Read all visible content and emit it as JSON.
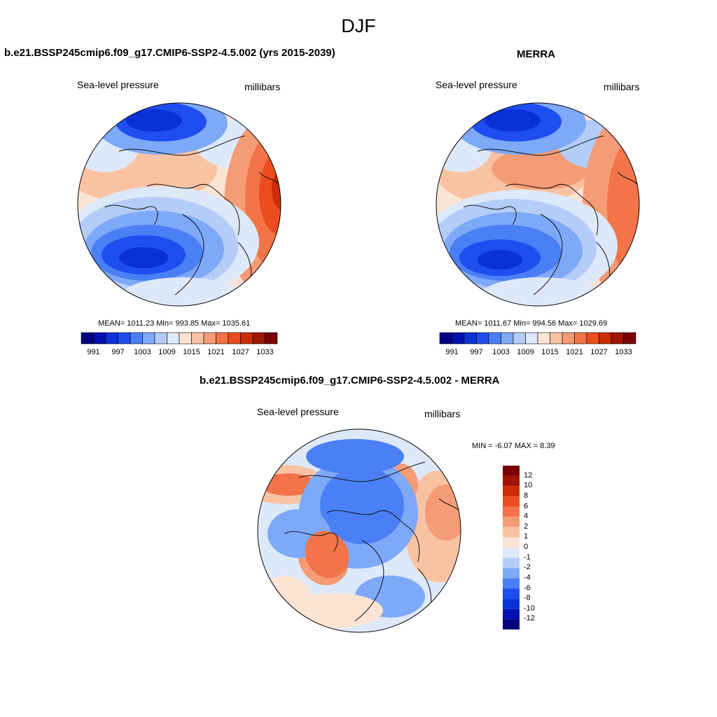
{
  "title": "DJF",
  "colors": {
    "div_scale": [
      "#000080",
      "#0010b0",
      "#0a30d8",
      "#1e4ef0",
      "#4a7ff5",
      "#7ea8f8",
      "#b4cdf8",
      "#dde9f9",
      "#fbe4d3",
      "#f9c3a3",
      "#f59b75",
      "#f27448",
      "#ec4d1f",
      "#cc2d06",
      "#9e1503",
      "#7a0000"
    ],
    "coast": "#111111"
  },
  "panels": [
    {
      "title": "b.e21.BSSP245cmip6.f09_g17.CMIP6-SSP2-4.5.002 (yrs 2015-2039)",
      "left_label": "Sea-level pressure",
      "right_label": "millibars",
      "stats": "MEAN= 1011.23  Min= 993.85  Max= 1035.61",
      "colorbar_ticks": [
        "991",
        "997",
        "1003",
        "1009",
        "1015",
        "1021",
        "1027",
        "1033"
      ]
    },
    {
      "title": "MERRA",
      "left_label": "Sea-level pressure",
      "right_label": "millibars",
      "stats": "MEAN= 1011.67  Min= 994.56  Max= 1029.69",
      "colorbar_ticks": [
        "991",
        "997",
        "1003",
        "1009",
        "1015",
        "1021",
        "1027",
        "1033"
      ]
    },
    {
      "title": "b.e21.BSSP245cmip6.f09_g17.CMIP6-SSP2-4.5.002 - MERRA",
      "left_label": "Sea-level pressure",
      "right_label": "millibars",
      "stats": "MIN =  -6.07 MAX =   8.39",
      "colorbar_ticks": [
        "12",
        "10",
        "8",
        "6",
        "4",
        "2",
        "1",
        "0",
        "-1",
        "-2",
        "-4",
        "-6",
        "-8",
        "-10",
        "-12"
      ]
    }
  ]
}
